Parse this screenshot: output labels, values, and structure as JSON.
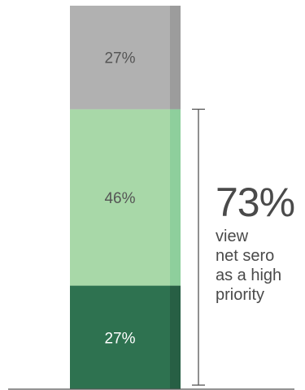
{
  "chart_data": {
    "type": "bar",
    "stacked": true,
    "categories": [
      ""
    ],
    "series": [
      {
        "values": [
          27
        ],
        "label": "27%",
        "color": "#2e7250",
        "edge_color": "#275f44",
        "label_color": "#ffffff"
      },
      {
        "values": [
          46
        ],
        "label": "46%",
        "color": "#a8d8a8",
        "edge_color": "#8ecf9c",
        "label_color": "#555555"
      },
      {
        "values": [
          27
        ],
        "label": "27%",
        "color": "#b1b1b1",
        "edge_color": "#9c9c9c",
        "label_color": "#555555"
      }
    ],
    "ylim": [
      0,
      100
    ],
    "annotation": {
      "value": "73%",
      "text": "view net sero as a high priority",
      "lines": [
        "view",
        "net sero",
        "as a high",
        "priority"
      ]
    },
    "bracket_color": "#555555",
    "axis_color": "#555555"
  }
}
